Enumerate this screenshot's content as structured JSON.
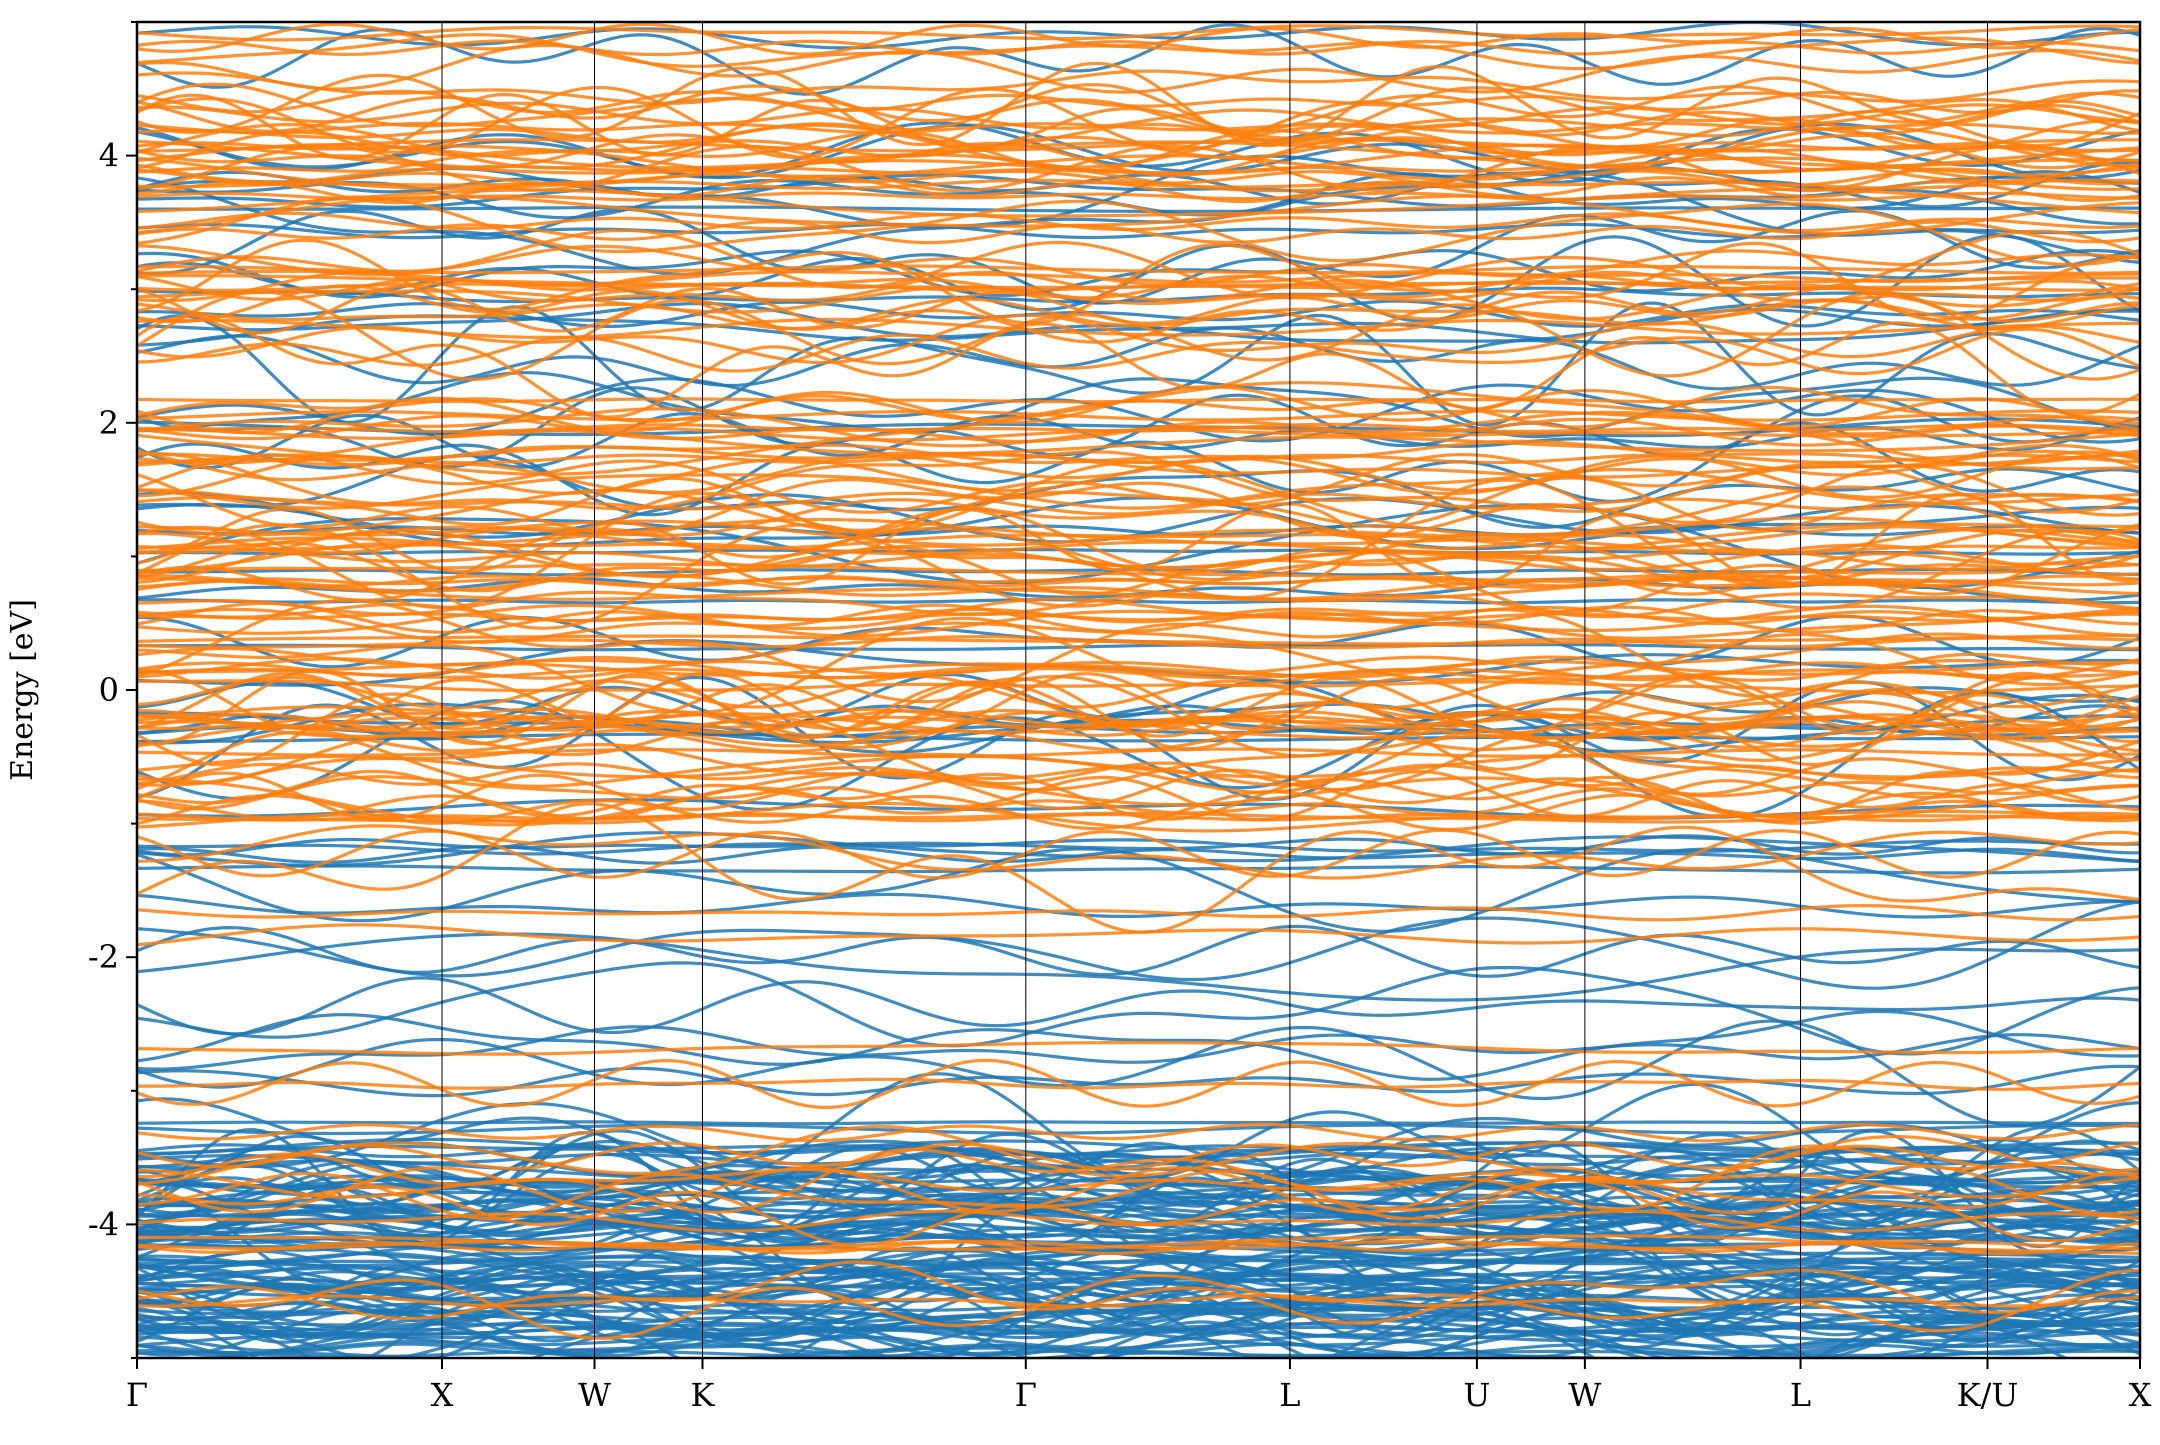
{
  "chart_data": {
    "type": "line",
    "title": "",
    "xlabel": "",
    "ylabel": "Energy [eV]",
    "ylim": [
      -5,
      5
    ],
    "yticks": [
      -4,
      -2,
      0,
      2,
      4
    ],
    "y_minor_step": 1,
    "grid": false,
    "legend": "none",
    "kpath": {
      "labels": [
        "Γ",
        "X",
        "W",
        "K",
        "Γ",
        "L",
        "U",
        "W",
        "L",
        "K/U",
        "X"
      ],
      "positions": [
        0.0,
        1.0,
        1.5,
        1.854,
        2.914,
        3.78,
        4.393,
        4.747,
        5.454,
        6.067,
        6.567
      ]
    },
    "series": [
      {
        "color": "#1f77b4",
        "band_count": 165,
        "band_energy_range": [
          -5,
          5
        ],
        "dense_region": [
          -5,
          -3.4
        ]
      },
      {
        "color": "#ff7f0e",
        "band_count": 160,
        "band_energy_range": [
          -5,
          5
        ],
        "dense_region": [
          -1,
          5
        ]
      }
    ]
  }
}
